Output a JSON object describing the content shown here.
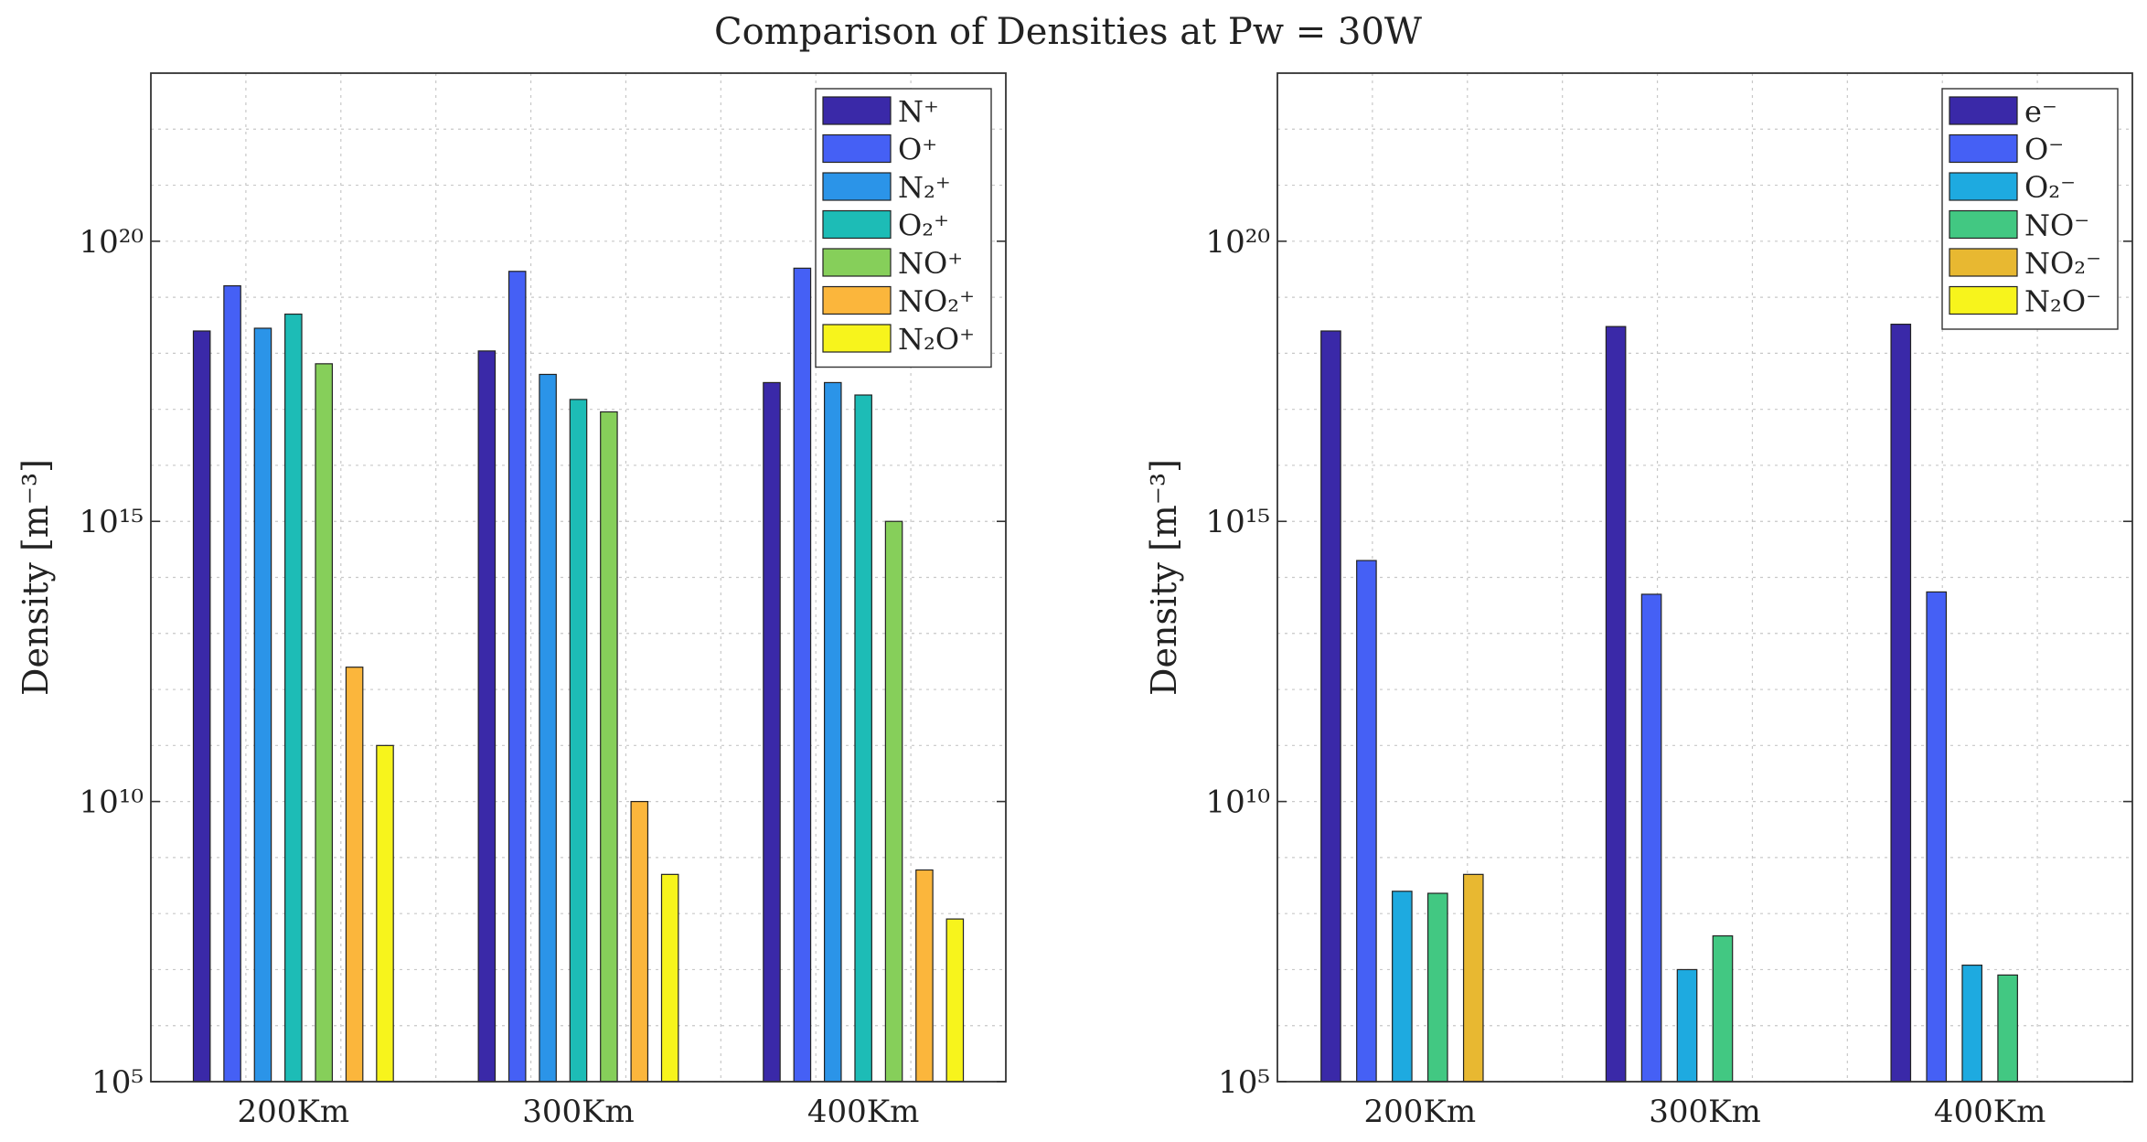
{
  "figure_title": "Comparison of Densities at Pw = 30W",
  "chart_data": [
    {
      "type": "bar",
      "yscale": "log",
      "title": "",
      "xlabel": "",
      "ylabel": "Density",
      "ylabel_unit": "[m⁻³]",
      "ylim": [
        100000,
        1e+23
      ],
      "yticks": [
        "10⁵",
        "10¹⁰",
        "10¹⁵",
        "10²⁰"
      ],
      "ytick_values": [
        100000,
        10000000000.0,
        1000000000000000.0,
        1e+20
      ],
      "categories": [
        "200Km",
        "300Km",
        "400Km"
      ],
      "legend_position": "top-right",
      "series": [
        {
          "name": "N⁺",
          "color": "#3a29a8",
          "values": [
            2.5e+18,
            1.1e+18,
            3e+17
          ]
        },
        {
          "name": "O⁺",
          "color": "#4560f5",
          "values": [
            1.6e+19,
            2.9e+19,
            3.3e+19
          ]
        },
        {
          "name": "N₂⁺",
          "color": "#2b94e8",
          "values": [
            2.8e+18,
            4.2e+17,
            3e+17
          ]
        },
        {
          "name": "O₂⁺",
          "color": "#1dbcb6",
          "values": [
            5e+18,
            1.5e+17,
            1.8e+17
          ]
        },
        {
          "name": "NO⁺",
          "color": "#86cf5a",
          "values": [
            6.5e+17,
            9e+16,
            1000000000000000.0
          ]
        },
        {
          "name": "NO₂⁺",
          "color": "#fbb63c",
          "values": [
            2500000000000.0,
            10000000000.0,
            600000000.0
          ]
        },
        {
          "name": "N₂O⁺",
          "color": "#f7f41c",
          "values": [
            100000000000.0,
            500000000.0,
            80000000.0
          ]
        }
      ]
    },
    {
      "type": "bar",
      "yscale": "log",
      "title": "",
      "xlabel": "",
      "ylabel": "Density",
      "ylabel_unit": "[m⁻³]",
      "ylim": [
        100000,
        1e+23
      ],
      "yticks": [
        "10⁵",
        "10¹⁰",
        "10¹⁵",
        "10²⁰"
      ],
      "ytick_values": [
        100000,
        10000000000.0,
        1000000000000000.0,
        1e+20
      ],
      "categories": [
        "200Km",
        "300Km",
        "400Km"
      ],
      "legend_position": "top-right",
      "series": [
        {
          "name": "e⁻",
          "color": "#3a29a8",
          "values": [
            2.5e+18,
            3e+18,
            3.3e+18
          ]
        },
        {
          "name": "O⁻",
          "color": "#4560f5",
          "values": [
            200000000000000.0,
            50000000000000.0,
            55000000000000.0
          ]
        },
        {
          "name": "O₂⁻",
          "color": "#1eaae0",
          "values": [
            250000000.0,
            10000000.0,
            12000000.0
          ]
        },
        {
          "name": "NO⁻",
          "color": "#42c882",
          "values": [
            230000000.0,
            40000000.0,
            8000000.0
          ]
        },
        {
          "name": "NO₂⁻",
          "color": "#e8b831",
          "values": [
            500000000.0,
            0,
            0
          ]
        },
        {
          "name": "N₂O⁻",
          "color": "#f7f41c",
          "values": [
            0,
            0,
            0
          ]
        }
      ]
    }
  ]
}
